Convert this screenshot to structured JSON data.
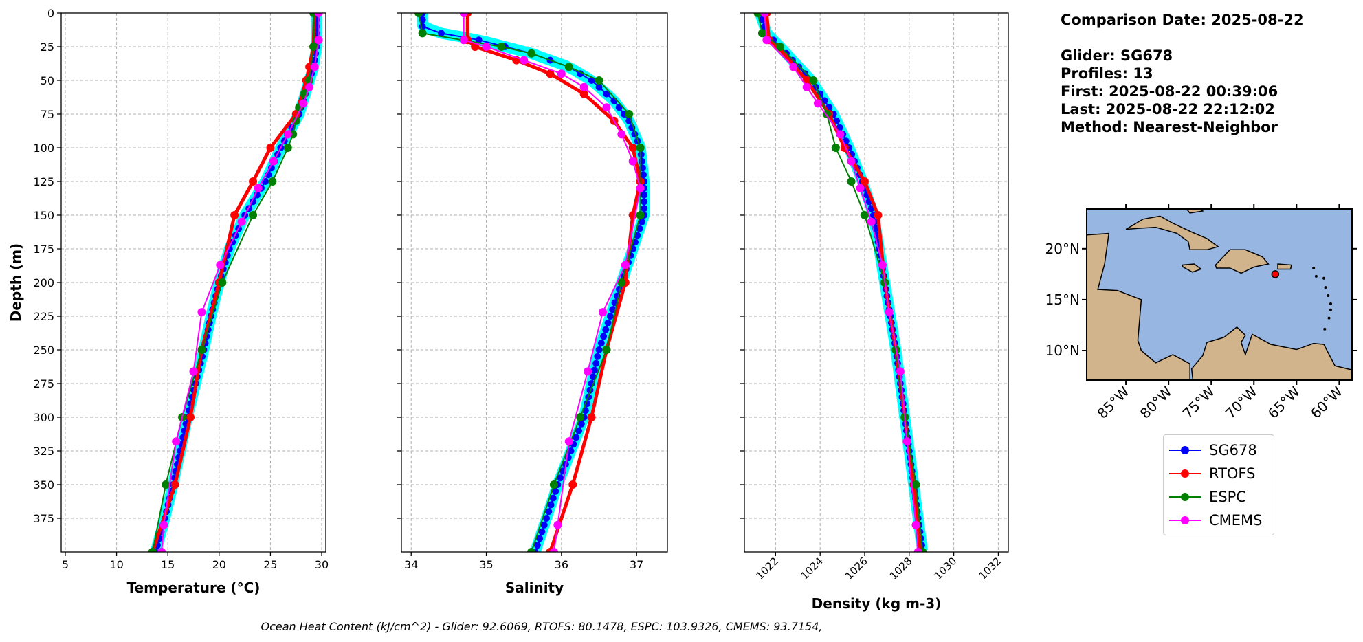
{
  "info": {
    "comparison_date": "Comparison Date: 2025-08-22",
    "glider": "Glider: SG678",
    "profiles": "Profiles: 13",
    "first": "First: 2025-08-22 00:39:06",
    "last": "Last: 2025-08-22 22:12:02",
    "method": "Method: Nearest-Neighbor"
  },
  "footer": "Ocean Heat Content (kJ/cm^2) - Glider: 92.6069,  RTOFS: 80.1478,  ESPC: 103.9326,  CMEMS: 93.7154,",
  "legend": [
    {
      "name": "SG678",
      "color": "#0000ff"
    },
    {
      "name": "RTOFS",
      "color": "#ff0000"
    },
    {
      "name": "ESPC",
      "color": "#008000"
    },
    {
      "name": "CMEMS",
      "color": "#ff00ff"
    }
  ],
  "chart_data": [
    {
      "type": "line",
      "title": "",
      "xlabel": "Temperature (°C)",
      "ylabel": "Depth (m)",
      "xlim": [
        4.6,
        30.4
      ],
      "ylim": [
        400,
        0
      ],
      "xticks": [
        "5",
        "10",
        "15",
        "20",
        "25",
        "30"
      ],
      "yticks": [
        "0",
        "25",
        "50",
        "75",
        "100",
        "125",
        "150",
        "175",
        "200",
        "225",
        "250",
        "275",
        "300",
        "325",
        "350",
        "375"
      ],
      "grid": true,
      "series": [
        {
          "name": "SG678",
          "color": "#0000ff",
          "depth": [
            0,
            25,
            40,
            50,
            75,
            100,
            125,
            150,
            175,
            200,
            225,
            250,
            275,
            300,
            325,
            350,
            375,
            400
          ],
          "values": [
            29.5,
            29.5,
            29.2,
            28.8,
            27.8,
            26.0,
            24.5,
            22.5,
            21.0,
            20.0,
            19.2,
            18.5,
            17.7,
            16.9,
            16.2,
            15.5,
            14.7,
            13.8
          ]
        },
        {
          "name": "RTOFS",
          "color": "#ff0000",
          "depth": [
            0,
            25,
            40,
            50,
            75,
            100,
            125,
            150,
            200,
            250,
            300,
            350,
            400
          ],
          "values": [
            29.3,
            29.2,
            28.8,
            28.5,
            27.5,
            25.0,
            23.3,
            21.5,
            20.0,
            18.3,
            17.2,
            15.7,
            13.5
          ]
        },
        {
          "name": "ESPC",
          "color": "#008000",
          "depth": [
            0,
            25,
            50,
            60,
            70,
            80,
            90,
            100,
            125,
            150,
            200,
            250,
            300,
            350,
            400
          ],
          "values": [
            29.2,
            29.2,
            28.8,
            28.3,
            27.8,
            27.5,
            27.2,
            26.7,
            25.2,
            23.3,
            20.3,
            18.3,
            16.4,
            14.8,
            13.5
          ]
        },
        {
          "name": "CMEMS",
          "color": "#ff00ff",
          "depth": [
            0,
            20,
            40,
            55,
            67,
            90,
            110,
            130,
            155,
            187,
            222,
            266,
            318,
            380,
            400
          ],
          "values": [
            29.7,
            29.7,
            29.3,
            28.8,
            28.2,
            26.7,
            25.3,
            23.8,
            22.2,
            20.1,
            18.3,
            17.5,
            15.8,
            14.6,
            14.4
          ]
        }
      ]
    },
    {
      "type": "line",
      "xlabel": "Salinity",
      "ylabel": "",
      "xlim": [
        33.87,
        37.41
      ],
      "ylim": [
        400,
        0
      ],
      "xticks": [
        "34",
        "35",
        "36",
        "37"
      ],
      "grid": true,
      "series": [
        {
          "name": "SG678",
          "color": "#0000ff",
          "depth": [
            0,
            10,
            15,
            20,
            30,
            40,
            50,
            65,
            80,
            100,
            125,
            150,
            175,
            200,
            250,
            300,
            350,
            400
          ],
          "values": [
            34.15,
            34.15,
            34.4,
            34.9,
            35.6,
            36.1,
            36.4,
            36.7,
            36.9,
            37.05,
            37.1,
            37.1,
            36.95,
            36.8,
            36.5,
            36.3,
            35.95,
            35.65
          ]
        },
        {
          "name": "RTOFS",
          "color": "#ff0000",
          "depth": [
            0,
            20,
            25,
            35,
            45,
            60,
            80,
            100,
            125,
            150,
            200,
            250,
            300,
            350,
            400
          ],
          "values": [
            34.75,
            34.75,
            34.85,
            35.4,
            35.85,
            36.3,
            36.7,
            36.95,
            37.05,
            36.95,
            36.85,
            36.6,
            36.4,
            36.15,
            35.85
          ]
        },
        {
          "name": "ESPC",
          "color": "#008000",
          "depth": [
            0,
            15,
            25,
            30,
            40,
            50,
            75,
            100,
            150,
            200,
            250,
            300,
            350,
            400
          ],
          "values": [
            34.1,
            34.15,
            35.2,
            35.6,
            36.1,
            36.5,
            36.9,
            37.05,
            37.05,
            36.8,
            36.6,
            36.25,
            35.9,
            35.6
          ]
        },
        {
          "name": "CMEMS",
          "color": "#ff00ff",
          "depth": [
            0,
            20,
            25,
            35,
            45,
            55,
            70,
            90,
            110,
            130,
            187,
            222,
            266,
            318,
            380,
            400
          ],
          "values": [
            34.7,
            34.7,
            35.0,
            35.5,
            36.0,
            36.3,
            36.6,
            36.8,
            36.95,
            37.05,
            36.85,
            36.55,
            36.35,
            36.1,
            35.95,
            35.9
          ]
        }
      ]
    },
    {
      "type": "line",
      "xlabel": "Density (kg m-3)",
      "ylabel": "",
      "xlim": [
        1020.6,
        1032.45
      ],
      "ylim": [
        400,
        0
      ],
      "xticks": [
        "1022",
        "1024",
        "1026",
        "1028",
        "1030",
        "1032"
      ],
      "grid": true,
      "series": [
        {
          "name": "SG678",
          "color": "#0000ff",
          "depth": [
            0,
            15,
            25,
            50,
            75,
            100,
            125,
            150,
            200,
            250,
            300,
            350,
            400
          ],
          "values": [
            1021.3,
            1021.6,
            1022.2,
            1023.6,
            1024.6,
            1025.3,
            1025.9,
            1026.4,
            1026.9,
            1027.4,
            1027.8,
            1028.2,
            1028.6
          ]
        },
        {
          "name": "RTOFS",
          "color": "#ff0000",
          "depth": [
            0,
            20,
            25,
            50,
            75,
            100,
            125,
            150,
            200,
            250,
            300,
            350,
            400
          ],
          "values": [
            1021.6,
            1021.7,
            1022.1,
            1023.4,
            1024.4,
            1025.1,
            1026.0,
            1026.6,
            1026.9,
            1027.4,
            1027.8,
            1028.2,
            1028.5
          ]
        },
        {
          "name": "ESPC",
          "color": "#008000",
          "depth": [
            0,
            15,
            25,
            50,
            75,
            100,
            125,
            150,
            200,
            250,
            300,
            350,
            400
          ],
          "values": [
            1021.2,
            1021.4,
            1022.2,
            1023.7,
            1024.3,
            1024.7,
            1025.4,
            1026.0,
            1026.9,
            1027.4,
            1027.8,
            1028.3,
            1028.6
          ]
        },
        {
          "name": "CMEMS",
          "color": "#ff00ff",
          "depth": [
            0,
            20,
            40,
            55,
            67,
            90,
            110,
            130,
            155,
            187,
            222,
            266,
            318,
            380,
            400
          ],
          "values": [
            1021.5,
            1021.6,
            1022.8,
            1023.4,
            1023.9,
            1024.9,
            1025.4,
            1025.8,
            1026.3,
            1026.8,
            1027.1,
            1027.6,
            1027.9,
            1028.3,
            1028.4
          ]
        }
      ]
    },
    {
      "type": "map",
      "lon_ticks": [
        "85°W",
        "80°W",
        "75°W",
        "70°W",
        "65°W",
        "60°W"
      ],
      "lat_ticks": [
        "10°N",
        "15°N",
        "20°N"
      ],
      "lon_range": [
        -89.6,
        -58.5
      ],
      "lat_range": [
        7.1,
        23.9
      ],
      "glider_position": {
        "lon": -67.5,
        "lat": 17.5
      },
      "ocean_color": "#97b6e1",
      "land_color": "#d2b48c"
    }
  ]
}
